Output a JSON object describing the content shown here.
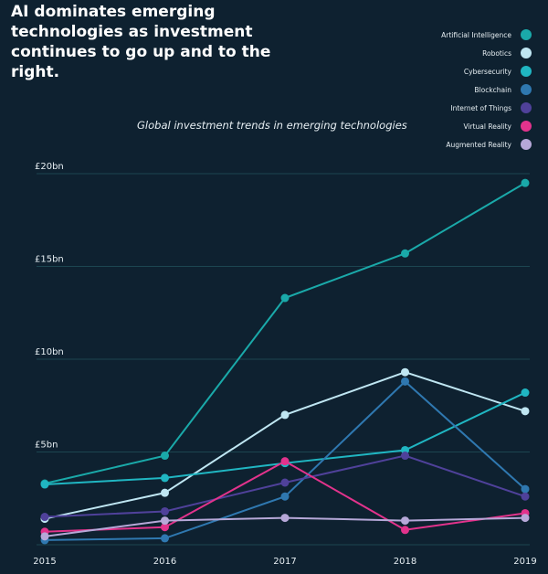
{
  "title": "AI dominates emerging technologies as investment continues to go up and to the right.",
  "chart_data": {
    "type": "line",
    "title": "Global investment trends in emerging technologies",
    "x": [
      "2015",
      "2016",
      "2017",
      "2018",
      "2019"
    ],
    "ylim": [
      0,
      20
    ],
    "yticks": [
      {
        "v": 5,
        "label": "£5bn"
      },
      {
        "v": 10,
        "label": "£10bn"
      },
      {
        "v": 15,
        "label": "£15bn"
      },
      {
        "v": 20,
        "label": "£20bn"
      }
    ],
    "grid": true,
    "legend_position": "top-right",
    "series": [
      {
        "name": "Artificial Intelligence",
        "color": "#1aa9a9",
        "values": [
          3.3,
          4.8,
          13.3,
          15.7,
          19.5
        ]
      },
      {
        "name": "Robotics",
        "color": "#bfe6f2",
        "values": [
          1.4,
          2.8,
          7.0,
          9.3,
          7.2
        ]
      },
      {
        "name": "Cybersecurity",
        "color": "#20b6c2",
        "values": [
          3.25,
          3.6,
          4.4,
          5.1,
          8.2
        ]
      },
      {
        "name": "Blockchain",
        "color": "#2f78b0",
        "values": [
          0.25,
          0.35,
          2.6,
          8.8,
          3.0
        ]
      },
      {
        "name": "Internet of Things",
        "color": "#4f419a",
        "values": [
          1.5,
          1.8,
          3.35,
          4.8,
          2.6
        ]
      },
      {
        "name": "Virtual  Reality",
        "color": "#e2338c",
        "values": [
          0.7,
          0.95,
          4.5,
          0.8,
          1.7
        ]
      },
      {
        "name": "Augmented Reality",
        "color": "#b6a8d8",
        "values": [
          0.45,
          1.3,
          1.45,
          1.3,
          1.45
        ]
      }
    ]
  }
}
